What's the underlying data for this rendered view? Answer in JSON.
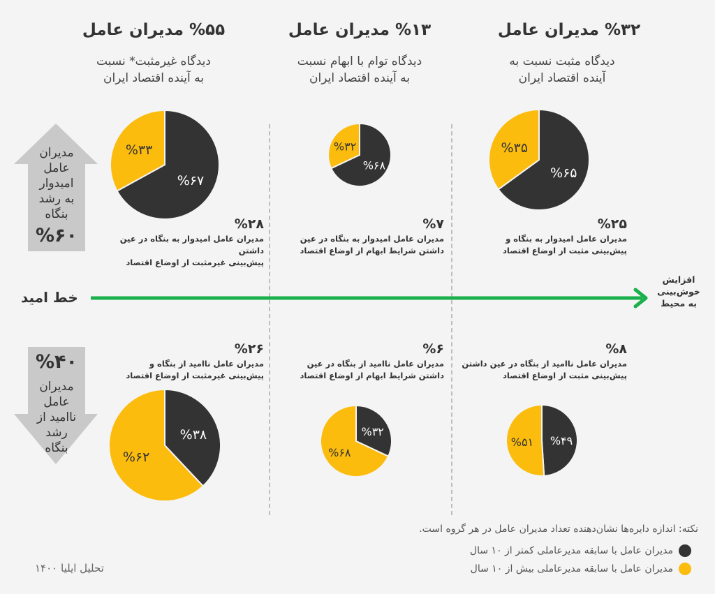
{
  "colors": {
    "background": "#f4f4f4",
    "dark": "#333333",
    "yellow": "#fbbc0e",
    "green": "#1ab04b",
    "arrow_gray": "#c9c9c9"
  },
  "columns": [
    {
      "title": "%۵۵ مدیران عامل",
      "subtitle_1": "دیدگاه غیرمثبت* نسبت",
      "subtitle_2": "به آینده اقتصاد ایران",
      "top_stat": {
        "value": "%۲۸",
        "line_1": "مدیران عامل امیدوار به بنگاه در عین داشتن",
        "line_2": "پیش‌بینی غیرمثبت از اوضاع اقتصاد"
      },
      "bottom_stat": {
        "value": "%۲۶",
        "line_1": "مدیران عامل ناامید از بنگاه و",
        "line_2": "پیش‌بینی غیرمثبت از اوضاع اقتصاد"
      }
    },
    {
      "title": "%۱۳ مدیران عامل",
      "subtitle_1": "دیدگاه توام با ابهام نسبت",
      "subtitle_2": "به آینده اقتصاد ایران",
      "top_stat": {
        "value": "%۷",
        "line_1": "مدیران عامل امیدوار به بنگاه در عین",
        "line_2": "داشتن شرایط ابهام از اوضاع اقتصاد"
      },
      "bottom_stat": {
        "value": "%۶",
        "line_1": "مدیران عامل ناامید از بنگاه در عین",
        "line_2": "داشتن شرایط ابهام از اوضاع اقتصاد"
      }
    },
    {
      "title": "%۳۲ مدیران عامل",
      "subtitle_1": "دیدگاه مثبت نسبت به",
      "subtitle_2": "آینده اقتصاد ایران",
      "top_stat": {
        "value": "%۲۵",
        "line_1": "مدیران عامل امیدوار به بنگاه و",
        "line_2": "پیش‌بینی مثبت از اوضاع اقتصاد"
      },
      "bottom_stat": {
        "value": "%۸",
        "line_1": "مدیران عامل ناامید از بنگاه در عین داشتن",
        "line_2": "پیش‌بینی مثبت از اوضاع اقتصاد"
      }
    }
  ],
  "up_arrow": {
    "line_1": "مدیران",
    "line_2": "عامل",
    "line_3": "امیدوار",
    "line_4": "به رشد",
    "line_5": "بنگاه",
    "value": "%۶۰"
  },
  "down_arrow": {
    "value": "%۴۰",
    "line_1": "مدیران",
    "line_2": "عامل",
    "line_3": "ناامید از",
    "line_4": "رشد",
    "line_5": "بنگاه"
  },
  "hope_line": {
    "label": "خط امید",
    "end_1": "افزایش",
    "end_2": "خوش‌بینی",
    "end_3": "به محیط"
  },
  "footer": {
    "note": "نکته: اندازه دایره‌ها نشان‌دهنده تعداد مدیران عامل در هر گروه است.",
    "legend": [
      {
        "label": "مدیران عامل با سابقه مدیرعاملی کمتر از ۱۰ سال",
        "color": "#333333"
      },
      {
        "label": "مدیران عامل با سابقه مدیرعاملی بیش از ۱۰ سال",
        "color": "#fbbc0e"
      }
    ],
    "credit": "تحلیل ایلیا ۱۴۰۰"
  },
  "chart_data": {
    "type": "pie",
    "series_names": [
      "مدیران عامل با سابقه مدیرعاملی کمتر از ۱۰ سال",
      "مدیران عامل با سابقه مدیرعاملی بیش از ۱۰ سال"
    ],
    "pies": [
      {
        "group": "hopeful-nonpositive",
        "share": 28,
        "values": [
          67,
          33
        ],
        "labels": [
          "%۶۷",
          "%۳۳"
        ]
      },
      {
        "group": "hopeful-ambiguous",
        "share": 7,
        "values": [
          68,
          32
        ],
        "labels": [
          "%۶۸",
          "%۳۲"
        ]
      },
      {
        "group": "hopeful-positive",
        "share": 25,
        "values": [
          65,
          35
        ],
        "labels": [
          "%۶۵",
          "%۳۵"
        ]
      },
      {
        "group": "hopeless-nonpositive",
        "share": 26,
        "values": [
          38,
          62
        ],
        "labels": [
          "%۳۸",
          "%۶۲"
        ]
      },
      {
        "group": "hopeless-ambiguous",
        "share": 6,
        "values": [
          32,
          68
        ],
        "labels": [
          "%۳۲",
          "%۶۸"
        ]
      },
      {
        "group": "hopeless-positive",
        "share": 8,
        "values": [
          49,
          51
        ],
        "labels": [
          "%۴۹",
          "%۵۱"
        ]
      }
    ]
  }
}
